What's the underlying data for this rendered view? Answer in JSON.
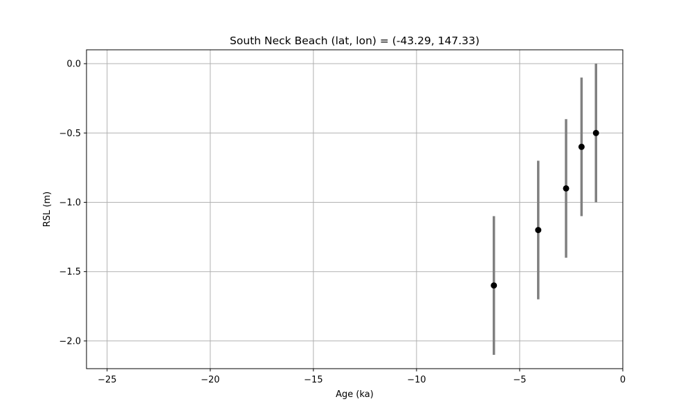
{
  "chart_data": {
    "type": "scatter",
    "title": "South Neck Beach (lat, lon) = (-43.29, 147.33)",
    "xlabel": "Age (ka)",
    "ylabel": "RSL (m)",
    "xlim": [
      -26,
      0
    ],
    "ylim": [
      -2.2,
      0.1
    ],
    "grid": true,
    "xticks": [
      -25,
      -20,
      -15,
      -10,
      -5,
      0
    ],
    "yticks": [
      0.0,
      -0.5,
      -1.0,
      -1.5,
      -2.0
    ],
    "xtick_labels": [
      "−25",
      "−20",
      "−15",
      "−10",
      "−5",
      "0"
    ],
    "ytick_labels": [
      "0.0",
      "−0.5",
      "−1.0",
      "−1.5",
      "−2.0"
    ],
    "points": [
      {
        "x": -6.25,
        "y": -1.6,
        "err": 0.5
      },
      {
        "x": -4.1,
        "y": -1.2,
        "err": 0.5
      },
      {
        "x": -2.75,
        "y": -0.9,
        "err": 0.5
      },
      {
        "x": -2.0,
        "y": -0.6,
        "err": 0.5
      },
      {
        "x": -1.3,
        "y": -0.5,
        "err": 0.5
      }
    ],
    "colors": {
      "marker": "#000000",
      "errorbar": "#808080",
      "grid": "#b0b0b0"
    }
  }
}
